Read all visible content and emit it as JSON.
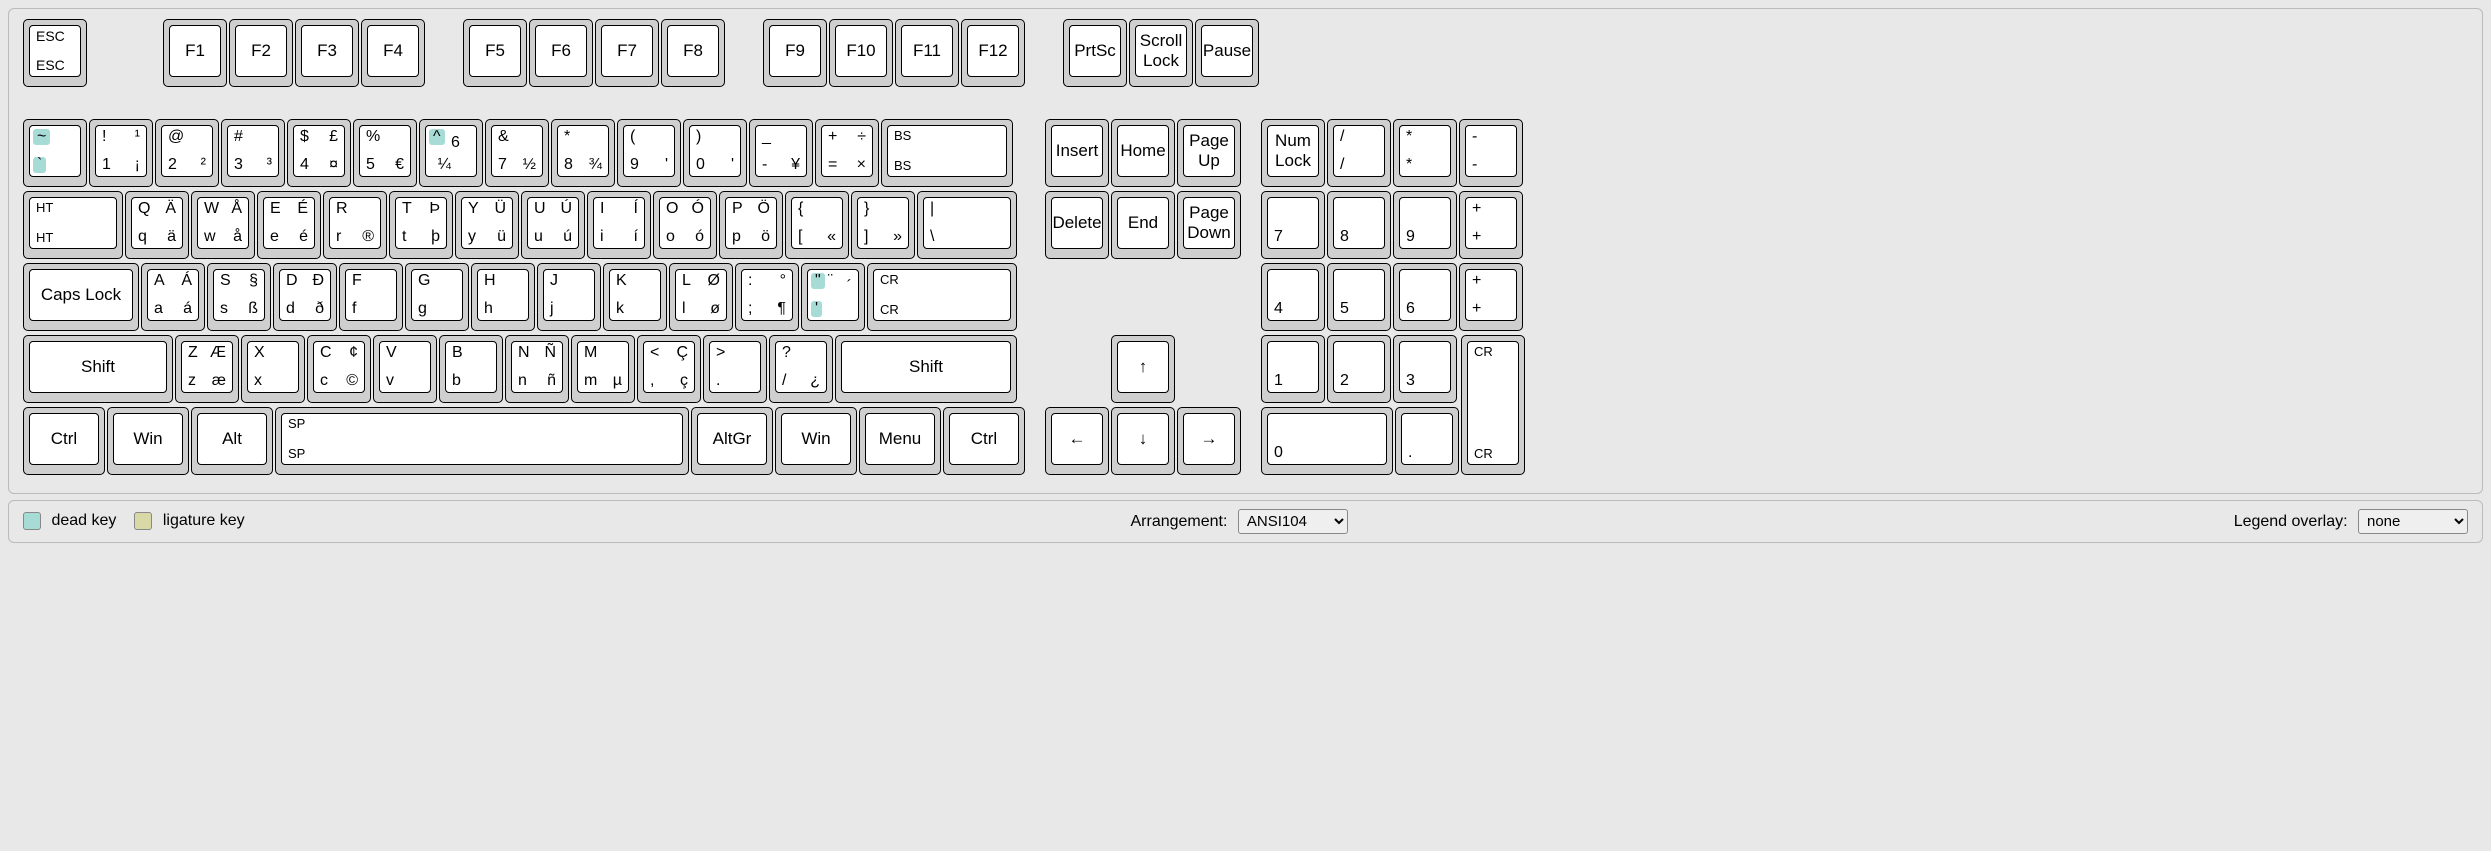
{
  "colors": {
    "background": "#e8e8e8",
    "key_base": "#cfcfcf",
    "key_cap": "#ffffff",
    "key_border": "#000000",
    "dead_key": "#a7dcd6",
    "ligature_key": "#d9d9a8",
    "panel_border": "#bbbbbb"
  },
  "footer": {
    "legend_dead": "dead key",
    "legend_ligature": "ligature key",
    "arrangement_label": "Arrangement:",
    "arrangement_value": "ANSI104",
    "overlay_label": "Legend overlay:",
    "overlay_value": "none"
  },
  "function_row": {
    "esc": {
      "top": "ESC",
      "bottom": "ESC"
    },
    "f": [
      "F1",
      "F2",
      "F3",
      "F4",
      "F5",
      "F6",
      "F7",
      "F8",
      "F9",
      "F10",
      "F11",
      "F12"
    ],
    "sys": [
      "PrtSc",
      "Scroll Lock",
      "Pause"
    ]
  },
  "number_row": [
    {
      "tl": "~",
      "bl": "`",
      "dead": true,
      "dead_pos": "both"
    },
    {
      "tl": "!",
      "tr": "¹",
      "bl": "1",
      "br": "¡"
    },
    {
      "tl": "@",
      "tr": "",
      "bl": "2",
      "br": "²"
    },
    {
      "tl": "#",
      "tr": "",
      "bl": "3",
      "br": "³"
    },
    {
      "tl": "$",
      "tr": "£",
      "bl": "4",
      "br": "¤"
    },
    {
      "tl": "%",
      "tr": "",
      "bl": "5",
      "br": "€"
    },
    {
      "tl": "^",
      "tr": "",
      "bl": "6",
      "br": "¼",
      "dead": true,
      "dead_pos": "tl"
    },
    {
      "tl": "&",
      "tr": "",
      "bl": "7",
      "br": "½"
    },
    {
      "tl": "*",
      "tr": "",
      "bl": "8",
      "br": "¾"
    },
    {
      "tl": "(",
      "tr": "",
      "bl": "9",
      "br": "'"
    },
    {
      "tl": ")",
      "tr": "",
      "bl": "0",
      "br": "'"
    },
    {
      "tl": "_",
      "tr": "",
      "bl": "-",
      "br": "¥"
    },
    {
      "tl": "+",
      "tr": "÷",
      "bl": "=",
      "br": "×"
    }
  ],
  "backspace": {
    "top": "BS",
    "bottom": "BS",
    "width": "w2"
  },
  "tab": {
    "top": "HT",
    "bottom": "HT",
    "width": "w15"
  },
  "qwerty_row": [
    {
      "tl": "Q",
      "tr": "Ä",
      "bl": "q",
      "br": "ä"
    },
    {
      "tl": "W",
      "tr": "Å",
      "bl": "w",
      "br": "å"
    },
    {
      "tl": "E",
      "tr": "É",
      "bl": "e",
      "br": "é"
    },
    {
      "tl": "R",
      "tr": "",
      "bl": "r",
      "br": "®"
    },
    {
      "tl": "T",
      "tr": "Þ",
      "bl": "t",
      "br": "þ"
    },
    {
      "tl": "Y",
      "tr": "Ü",
      "bl": "y",
      "br": "ü"
    },
    {
      "tl": "U",
      "tr": "Ú",
      "bl": "u",
      "br": "ú"
    },
    {
      "tl": "I",
      "tr": "Í",
      "bl": "i",
      "br": "í"
    },
    {
      "tl": "O",
      "tr": "Ó",
      "bl": "o",
      "br": "ó"
    },
    {
      "tl": "P",
      "tr": "Ö",
      "bl": "p",
      "br": "ö"
    },
    {
      "tl": "{",
      "tr": "",
      "bl": "[",
      "br": "«"
    },
    {
      "tl": "}",
      "tr": "",
      "bl": "]",
      "br": "»"
    },
    {
      "tl": "|",
      "tr": "",
      "bl": "\\",
      "br": "",
      "width": "w15"
    }
  ],
  "caps": {
    "label": "Caps Lock",
    "width": "w175"
  },
  "asdf_row": [
    {
      "tl": "A",
      "tr": "Á",
      "bl": "a",
      "br": "á"
    },
    {
      "tl": "S",
      "tr": "§",
      "bl": "s",
      "br": "ß"
    },
    {
      "tl": "D",
      "tr": "Ð",
      "bl": "d",
      "br": "ð"
    },
    {
      "tl": "F",
      "tr": "",
      "bl": "f",
      "br": ""
    },
    {
      "tl": "G",
      "tr": "",
      "bl": "g",
      "br": ""
    },
    {
      "tl": "H",
      "tr": "",
      "bl": "h",
      "br": ""
    },
    {
      "tl": "J",
      "tr": "",
      "bl": "j",
      "br": ""
    },
    {
      "tl": "K",
      "tr": "",
      "bl": "k",
      "br": ""
    },
    {
      "tl": "L",
      "tr": "Ø",
      "bl": "l",
      "br": "ø"
    },
    {
      "tl": ":",
      "tr": "°",
      "bl": ";",
      "br": "¶"
    },
    {
      "tl": "\"",
      "tr": "¨",
      "bl": "'",
      "br": "´",
      "dead": true,
      "dead_pos": "left"
    }
  ],
  "enter": {
    "top": "CR",
    "bottom": "CR",
    "width": "w225"
  },
  "lshift": {
    "label": "Shift",
    "width": "w225"
  },
  "zxcv_row": [
    {
      "tl": "Z",
      "tr": "Æ",
      "bl": "z",
      "br": "æ"
    },
    {
      "tl": "X",
      "tr": "",
      "bl": "x",
      "br": ""
    },
    {
      "tl": "C",
      "tr": "¢",
      "bl": "c",
      "br": "©"
    },
    {
      "tl": "V",
      "tr": "",
      "bl": "v",
      "br": ""
    },
    {
      "tl": "B",
      "tr": "",
      "bl": "b",
      "br": ""
    },
    {
      "tl": "N",
      "tr": "Ñ",
      "bl": "n",
      "br": "ñ"
    },
    {
      "tl": "M",
      "tr": "",
      "bl": "m",
      "br": "µ"
    },
    {
      "tl": "<",
      "tr": "Ç",
      "bl": ",",
      "br": "ç"
    },
    {
      "tl": ">",
      "tr": "",
      "bl": ".",
      "br": ""
    },
    {
      "tl": "?",
      "tr": "",
      "bl": "/",
      "br": "¿"
    }
  ],
  "rshift": {
    "label": "Shift",
    "width": "w275"
  },
  "bottom_row": [
    {
      "label": "Ctrl",
      "width": "w125"
    },
    {
      "label": "Win",
      "width": "w125"
    },
    {
      "label": "Alt",
      "width": "w125"
    }
  ],
  "space": {
    "top": "SP",
    "bottom": "SP"
  },
  "bottom_row_right": [
    {
      "label": "AltGr",
      "width": "w125"
    },
    {
      "label": "Win",
      "width": "w125"
    },
    {
      "label": "Menu",
      "width": "w125"
    },
    {
      "label": "Ctrl",
      "width": "w125"
    }
  ],
  "nav_top": [
    "Insert",
    "Home",
    "Page Up"
  ],
  "nav_bottom": [
    "Delete",
    "End",
    "Page Down"
  ],
  "arrows": {
    "up": "↑",
    "left": "←",
    "down": "↓",
    "right": "→"
  },
  "numpad": {
    "r1": [
      {
        "label": "Num Lock"
      },
      {
        "tl": "/",
        "bl": "/"
      },
      {
        "tl": "*",
        "bl": "*"
      },
      {
        "tl": "-",
        "bl": "-"
      }
    ],
    "r2": [
      {
        "bl": "7"
      },
      {
        "bl": "8"
      },
      {
        "bl": "9"
      }
    ],
    "plus": {
      "tl": "+",
      "bl": "+"
    },
    "r3": [
      {
        "bl": "4"
      },
      {
        "bl": "5"
      },
      {
        "bl": "6"
      },
      {
        "tl": "+",
        "bl": "+"
      }
    ],
    "r4": [
      {
        "bl": "1"
      },
      {
        "bl": "2"
      },
      {
        "bl": "3"
      }
    ],
    "enter": {
      "top": "CR",
      "bottom": "CR"
    },
    "r5": [
      {
        "bl": "0",
        "width": "w2"
      },
      {
        "bl": "."
      }
    ]
  }
}
